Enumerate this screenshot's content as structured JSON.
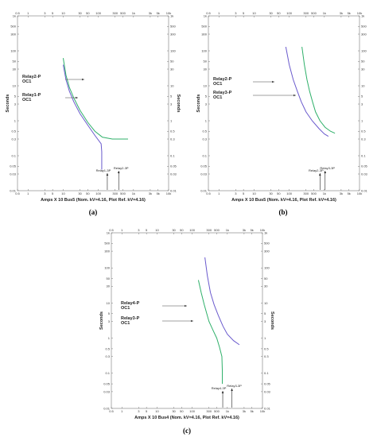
{
  "chart_data": [
    {
      "panel_label": "(a)",
      "type": "line",
      "log_scale": {
        "x": true,
        "y": true
      },
      "xlim": [
        0.5,
        10000
      ],
      "ylim": [
        0.01,
        1000
      ],
      "xlabel": "Amps X 10 Bus5 (Nom. kV=4.16, Plot Ref. kV=4.16)",
      "ylabel": "Seconds",
      "ylabel_right": "Seconds",
      "x_ticks": [
        "0.5",
        "1",
        "3",
        "5",
        "10",
        "30",
        "50",
        "100",
        "300",
        "500",
        "1k",
        "3k",
        "5k",
        "10k"
      ],
      "x_ticks_top": [
        "0.5",
        "1",
        "3",
        "5",
        "10",
        "30",
        "50",
        "100",
        "300",
        "500",
        "1k",
        "3k",
        "5k",
        "10k"
      ],
      "y_ticks": [
        "1k",
        "500",
        "300",
        "100",
        "50",
        "30",
        "10",
        "5",
        "3",
        "1",
        "0.5",
        "0.3",
        "0.1",
        "0.05",
        "0.03",
        "0.01"
      ],
      "grid": false,
      "series": [
        {
          "name": "Relay1-P OC1",
          "color": "#6a5acd",
          "points": [
            [
              10,
              40
            ],
            [
              12,
              15
            ],
            [
              15,
              7
            ],
            [
              20,
              3.5
            ],
            [
              30,
              1.6
            ],
            [
              50,
              0.75
            ],
            [
              80,
              0.38
            ],
            [
              120,
              0.22
            ],
            [
              125,
              0.13
            ],
            [
              125,
              0.04
            ]
          ]
        },
        {
          "name": "Relay2-P OC1",
          "color": "#2fb06a",
          "points": [
            [
              10,
              62
            ],
            [
              12,
              20
            ],
            [
              15,
              9
            ],
            [
              20,
              4.5
            ],
            [
              30,
              2
            ],
            [
              50,
              0.9
            ],
            [
              80,
              0.5
            ],
            [
              130,
              0.34
            ],
            [
              250,
              0.3
            ],
            [
              700,
              0.3
            ]
          ]
        }
      ],
      "annotations": [
        {
          "text": "Relay2-P\nOC1",
          "series": "Relay2-P OC1"
        },
        {
          "text": "Relay1-P\nOC1",
          "series": "Relay1-P OC1"
        }
      ],
      "fault_markers": [
        {
          "label": "Relay1-3P",
          "x": 180
        },
        {
          "label": "Relay2-3P",
          "x": 380
        }
      ]
    },
    {
      "panel_label": "(b)",
      "type": "line",
      "log_scale": {
        "x": true,
        "y": true
      },
      "xlim": [
        0.5,
        10000
      ],
      "ylim": [
        0.01,
        1000
      ],
      "xlabel": "Amps X 10 Bus5 (Nom. kV=4.16, Plot Ref. kV=4.16)",
      "ylabel": "Seconds",
      "x_ticks": [
        "0.5",
        "1",
        "3",
        "5",
        "10",
        "30",
        "50",
        "100",
        "300",
        "500",
        "1k",
        "3k",
        "5k",
        "10k"
      ],
      "x_ticks_top": [
        "0.5",
        "1",
        "3",
        "5",
        "10",
        "30",
        "50",
        "100",
        "300",
        "500",
        "1k",
        "3k",
        "5k",
        "10k"
      ],
      "y_ticks": [
        "1k",
        "500",
        "300",
        "100",
        "50",
        "30",
        "10",
        "5",
        "3",
        "1",
        "0.5",
        "0.3",
        "0.1",
        "0.05",
        "0.03",
        "0.01"
      ],
      "grid": false,
      "series": [
        {
          "name": "Relay2-P OC1",
          "color": "#6a5acd",
          "points": [
            [
              80,
              130
            ],
            [
              100,
              40
            ],
            [
              130,
              15
            ],
            [
              170,
              7
            ],
            [
              220,
              3.5
            ],
            [
              300,
              1.8
            ],
            [
              450,
              1
            ],
            [
              700,
              0.6
            ],
            [
              1000,
              0.42
            ],
            [
              1300,
              0.36
            ]
          ]
        },
        {
          "name": "Relay3-P OC1",
          "color": "#2fb06a",
          "points": [
            [
              230,
              130
            ],
            [
              270,
              40
            ],
            [
              320,
              15
            ],
            [
              380,
              7
            ],
            [
              460,
              3.5
            ],
            [
              560,
              1.8
            ],
            [
              750,
              1
            ],
            [
              1050,
              0.65
            ],
            [
              1500,
              0.5
            ],
            [
              2000,
              0.44
            ]
          ]
        }
      ],
      "annotations": [
        {
          "text": "Relay2-P\nOC1",
          "series": "Relay2-P OC1"
        },
        {
          "text": "Relay3-P\nOC1",
          "series": "Relay3-P OC1"
        }
      ],
      "fault_markers": [
        {
          "label": "Relay2-3P",
          "x": 750
        },
        {
          "label": "Relay3-3P",
          "x": 1050
        }
      ]
    },
    {
      "panel_label": "(c)",
      "type": "line",
      "log_scale": {
        "x": true,
        "y": true
      },
      "xlim": [
        0.5,
        10000
      ],
      "ylim": [
        0.01,
        1000
      ],
      "xlabel": "Amps X 10 Bus4 (Nom. kV=4.16, Plot Ref. kV=4.16)",
      "ylabel": "Seconds",
      "ylabel_right": "Seconds",
      "x_ticks": [
        "0.5",
        "1",
        "3",
        "5",
        "10",
        "30",
        "50",
        "100",
        "300",
        "500",
        "1k",
        "3k",
        "5k",
        "10k"
      ],
      "x_ticks_top": [
        "0.5",
        "1",
        "3",
        "5",
        "10",
        "30",
        "50",
        "100",
        "300",
        "500",
        "1k",
        "3k",
        "5k",
        "10k"
      ],
      "y_ticks": [
        "1k",
        "500",
        "300",
        "100",
        "50",
        "30",
        "10",
        "5",
        "3",
        "1",
        "0.5",
        "0.3",
        "0.1",
        "0.05",
        "0.03",
        "0.01"
      ],
      "grid": false,
      "series": [
        {
          "name": "Relay4-P OC1",
          "color": "#2fb06a",
          "points": [
            [
              150,
              45
            ],
            [
              180,
              20
            ],
            [
              220,
              9
            ],
            [
              260,
              5
            ],
            [
              300,
              3
            ],
            [
              400,
              1.6
            ],
            [
              500,
              1
            ],
            [
              600,
              0.55
            ],
            [
              700,
              0.3
            ],
            [
              720,
              0.12
            ],
            [
              720,
              0.05
            ]
          ]
        },
        {
          "name": "Relay3-P OC1",
          "color": "#6a5acd",
          "points": [
            [
              230,
              200
            ],
            [
              270,
              60
            ],
            [
              330,
              20
            ],
            [
              420,
              9
            ],
            [
              550,
              4.5
            ],
            [
              750,
              2.2
            ],
            [
              1000,
              1.3
            ],
            [
              1500,
              0.85
            ],
            [
              2200,
              0.65
            ]
          ]
        }
      ],
      "annotations": [
        {
          "text": "Relay4-P\nOC1",
          "series": "Relay4-P OC1"
        },
        {
          "text": "Relay3-P\nOC1",
          "series": "Relay3-P OC1"
        }
      ],
      "fault_markers": [
        {
          "label": "Relay4-3P",
          "x": 740
        },
        {
          "label": "Relay3-3P",
          "x": 1350
        }
      ]
    }
  ]
}
